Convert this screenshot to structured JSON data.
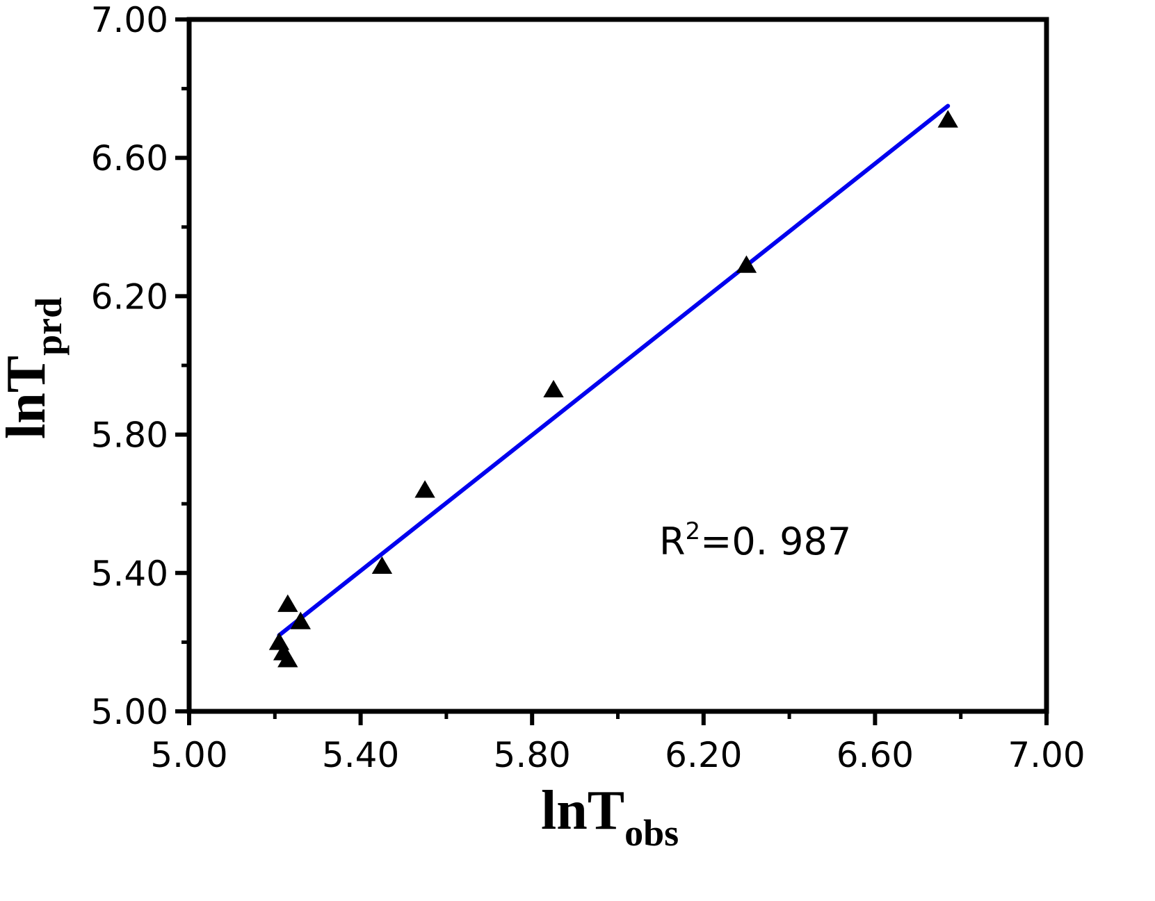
{
  "chart_data": {
    "type": "scatter",
    "xlabel": {
      "main": "lnT",
      "sub": "obs"
    },
    "ylabel": {
      "main": "lnT",
      "sub": "prd"
    },
    "xlim": [
      5.0,
      7.0
    ],
    "ylim": [
      5.0,
      7.0
    ],
    "x_ticks": [
      "5.00",
      "5.40",
      "5.80",
      "6.20",
      "6.60",
      "7.00"
    ],
    "y_ticks": [
      "5.00",
      "5.40",
      "5.80",
      "6.20",
      "6.60",
      "7.00"
    ],
    "grid": false,
    "series": [
      {
        "marker": "triangle",
        "color": "#000000",
        "points": [
          {
            "x": 5.21,
            "y": 5.2
          },
          {
            "x": 5.22,
            "y": 5.17
          },
          {
            "x": 5.23,
            "y": 5.15
          },
          {
            "x": 5.23,
            "y": 5.31
          },
          {
            "x": 5.26,
            "y": 5.26
          },
          {
            "x": 5.45,
            "y": 5.42
          },
          {
            "x": 5.55,
            "y": 5.64
          },
          {
            "x": 5.85,
            "y": 5.93
          },
          {
            "x": 6.3,
            "y": 6.29
          },
          {
            "x": 6.77,
            "y": 6.71
          }
        ]
      }
    ],
    "fit_line": {
      "color": "#0000ee",
      "x": [
        5.21,
        6.77
      ],
      "y": [
        5.22,
        6.75
      ]
    },
    "annotation": {
      "base": "R",
      "sup": "2",
      "rest": "=0. 987"
    }
  }
}
